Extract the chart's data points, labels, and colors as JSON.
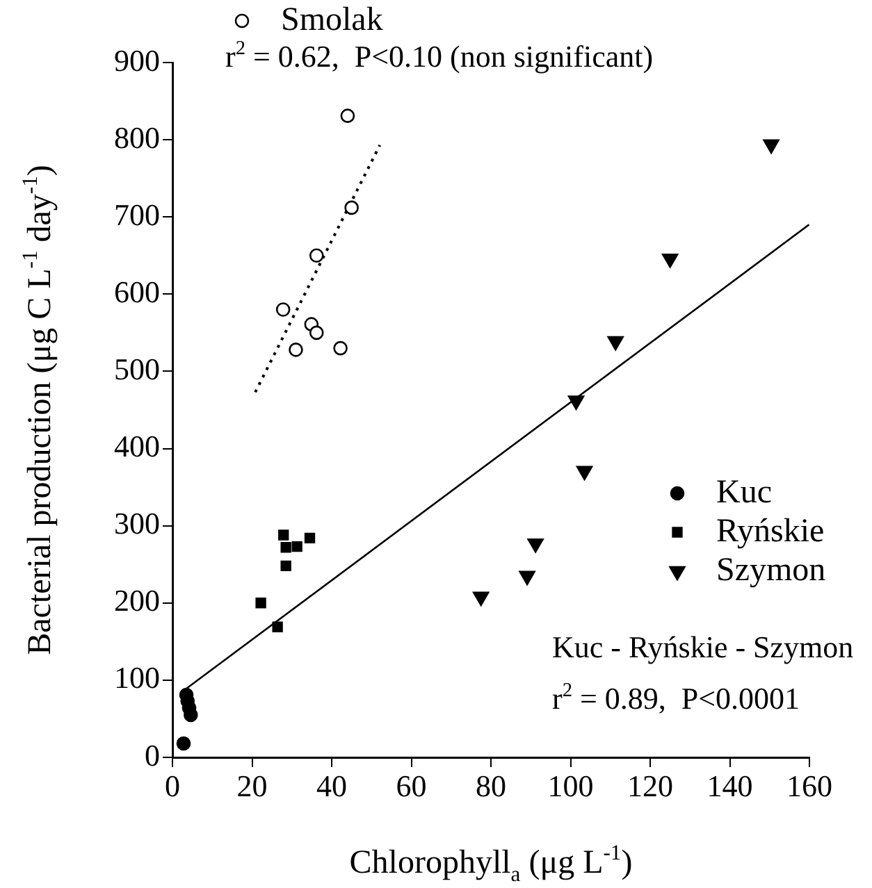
{
  "chart_data": {
    "type": "scatter",
    "xlabel": "Chlorophyll$_{a}$ (μg L$^{-1}$)",
    "ylabel": "Bacterial production (μg C L$^{-1}$ day$^{-1}$)",
    "xlim": [
      0,
      160
    ],
    "xticks": [
      0,
      20,
      40,
      60,
      80,
      100,
      120,
      140,
      160
    ],
    "ylim": [
      0,
      900
    ],
    "yticks": [
      0,
      100,
      200,
      300,
      400,
      500,
      600,
      700,
      800,
      900
    ],
    "grid": false,
    "legend": "right",
    "annotations": [
      "r$^{2}$ = 0.62,  P<0.10 (non significant)",
      "Kuc - Ryńskie - Szymon",
      "r$^{2}$ = 0.89,  P<0.0001"
    ],
    "series": [
      {
        "name": "Smolak",
        "color": "#ffffff",
        "marker": "circle",
        "x": [
          44.0,
          45.0,
          36.2,
          27.8,
          34.9,
          36.2,
          31.0,
          42.2
        ],
        "values": [
          831,
          712,
          650,
          580,
          561,
          550,
          528,
          530
        ]
      },
      {
        "name": "Kuc",
        "color": "#000000",
        "marker": "circle",
        "x": [
          3.5,
          3.8,
          4.2,
          4.6,
          2.8
        ],
        "values": [
          81,
          73,
          64,
          55,
          18
        ]
      },
      {
        "name": "Ryńskie",
        "color": "#000000",
        "marker": "square",
        "x": [
          27.9,
          28.5,
          31.3,
          34.5,
          28.5,
          22.2,
          26.4
        ],
        "values": [
          288,
          272,
          273,
          284,
          248,
          200,
          169
        ]
      },
      {
        "name": "Szymon",
        "color": "#000000",
        "marker": "triangle",
        "x": [
          77.5,
          89.1,
          91.2,
          150.4,
          125.0,
          111.3,
          101.4,
          103.5
        ],
        "values": [
          208,
          235,
          277,
          794,
          646,
          539,
          462,
          371
        ]
      },
      {
        "type": "line",
        "color": "#000000",
        "line_style": "dotted",
        "marker": "none",
        "x": [
          20.8,
          52.1
        ],
        "values": [
          473,
          793
        ]
      },
      {
        "type": "line",
        "color": "#000000",
        "line_style": "solid",
        "marker": "none",
        "x": [
          3.2,
          159.9
        ],
        "values": [
          88,
          690
        ]
      }
    ]
  }
}
